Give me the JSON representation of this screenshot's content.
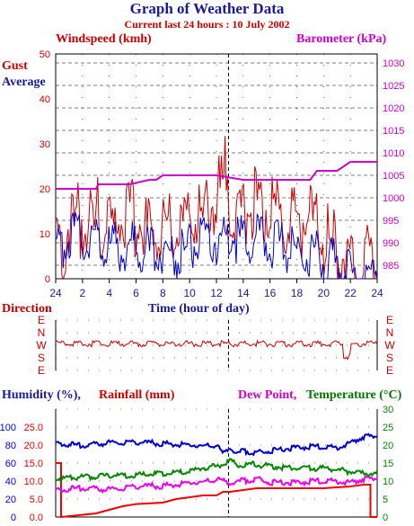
{
  "header": {
    "title": "Graph of Weather Data",
    "subtitle": "Current last 24 hours : 10 July 2002"
  },
  "colors": {
    "gust": "#cc0000",
    "average": "#0000cc",
    "barometer": "#cc00cc",
    "humidity": "#0000cc",
    "rainfall": "#ee0000",
    "dewpoint": "#ee00ee",
    "temperature": "#008800",
    "title": "#1a1a99",
    "axis_label_red": "#cc0000"
  },
  "chart_data": [
    {
      "type": "line",
      "panel": "wind",
      "labels": {
        "left_axis": "Windspeed (kmh)",
        "right_axis": "Barometer (kPa)",
        "gust": "Gust",
        "average": "Average",
        "xlabel": "Time (hour of day)"
      },
      "x": {
        "start_hour": 24,
        "ticks": [
          "24",
          "2",
          "4",
          "6",
          "8",
          "10",
          "12",
          "14",
          "16",
          "18",
          "20",
          "22",
          "24"
        ],
        "marker_hour": 12.9
      },
      "ylim": [
        0,
        50
      ],
      "yticks": [
        0,
        10,
        20,
        30,
        40,
        50
      ],
      "y2lim": [
        982,
        1032
      ],
      "y2ticks": [
        985,
        990,
        995,
        1000,
        1005,
        1010,
        1015,
        1020,
        1025,
        1030
      ],
      "grid": true,
      "series": [
        {
          "name": "Gust",
          "x": [
            0,
            1,
            2,
            3,
            3.1,
            3.3,
            4,
            5,
            6,
            7,
            8,
            9,
            10,
            11,
            12,
            12.5,
            12.7,
            13,
            14,
            15,
            16,
            17,
            18,
            19,
            20,
            21,
            22,
            22.5,
            23,
            24
          ],
          "y": [
            10,
            16,
            18,
            15,
            27,
            15,
            16,
            17,
            18,
            14,
            17,
            16,
            18,
            18,
            22,
            25,
            33,
            20,
            19,
            22,
            19,
            16,
            17,
            18,
            13,
            11,
            9,
            4,
            7,
            10
          ]
        },
        {
          "name": "Average",
          "x": [
            0,
            1,
            2,
            3,
            4,
            5,
            6,
            7,
            8,
            9,
            10,
            11,
            12,
            13,
            14,
            15,
            16,
            17,
            18,
            19,
            20,
            21,
            22,
            22.5,
            23,
            24
          ],
          "y": [
            8,
            13,
            12,
            12,
            10,
            10,
            11,
            9,
            10,
            8,
            10,
            11,
            11,
            13,
            11,
            12,
            11,
            10,
            9,
            9,
            7,
            6,
            5,
            0,
            2,
            7
          ]
        },
        {
          "name": "Barometer",
          "x": [
            0,
            3,
            3.2,
            5.5,
            7,
            7.5,
            8,
            9,
            10,
            11,
            12,
            14,
            17,
            19,
            19.5,
            21,
            22,
            24
          ],
          "y": [
            1002,
            1002,
            1003,
            1003,
            1004,
            1004,
            1005,
            1005,
            1005,
            1005,
            1005,
            1004,
            1004,
            1004,
            1006,
            1006,
            1008,
            1008
          ]
        }
      ]
    },
    {
      "type": "line",
      "panel": "direction",
      "labels": {
        "title": "Direction"
      },
      "yticks": [
        "E",
        "N",
        "W",
        "S",
        "E"
      ],
      "series": [
        {
          "name": "Direction",
          "x": [
            0,
            2,
            4,
            6,
            8,
            10,
            12,
            14,
            16,
            18,
            20,
            21,
            21.5,
            22,
            24
          ],
          "y": [
            "W",
            "W",
            "W",
            "W",
            "W",
            "W",
            "W",
            "W",
            "W",
            "W",
            "W",
            "W",
            "S",
            "W",
            "W"
          ]
        }
      ]
    },
    {
      "type": "line",
      "panel": "humidity",
      "labels": {
        "humidity": "Humidity (%),",
        "rainfall": "Rainfall (mm)",
        "dewpoint": "Dew Point,",
        "temperature": "Temperature (°C)"
      },
      "humidity_ticks": [
        0,
        20,
        40,
        60,
        80,
        100
      ],
      "rain_ticks": [
        "0.0",
        "5.0",
        "10.0",
        "15.0",
        "20.0",
        "25.0"
      ],
      "right_ticks": [
        0,
        5,
        10,
        15,
        20,
        25,
        30
      ],
      "ylim": [
        0,
        30
      ],
      "grid": true,
      "series": [
        {
          "name": "Humidity",
          "unit": "%",
          "x": [
            0,
            2,
            4,
            6,
            8,
            10,
            11,
            12,
            12.5,
            13,
            13.5,
            14,
            15,
            16,
            18,
            20,
            21,
            22,
            23,
            24
          ],
          "y": [
            84,
            81,
            84,
            85,
            83,
            82,
            80,
            82,
            72,
            80,
            72,
            75,
            73,
            75,
            79,
            80,
            78,
            84,
            91,
            91
          ]
        },
        {
          "name": "Rainfall",
          "unit": "mm",
          "x": [
            0,
            0.4,
            0.4,
            3,
            4,
            5,
            6,
            8,
            9,
            10,
            11,
            12,
            12.5,
            13,
            15,
            16,
            18,
            20,
            22,
            23,
            23.5,
            23.5,
            24
          ],
          "y": [
            15,
            15,
            0,
            1,
            2,
            3,
            3.6,
            4,
            5,
            5.5,
            6,
            6,
            7,
            7,
            8,
            8,
            8,
            8,
            8.5,
            9,
            9,
            0,
            0
          ]
        },
        {
          "name": "Dew Point",
          "unit": "°C",
          "x": [
            0,
            2,
            4,
            6,
            8,
            10,
            11,
            12,
            13,
            14,
            15,
            16,
            18,
            20,
            22,
            23,
            24
          ],
          "y": [
            8,
            8.5,
            8,
            9,
            9,
            10,
            10,
            11,
            10,
            10.5,
            11,
            10,
            10,
            10.5,
            10,
            11,
            11
          ]
        },
        {
          "name": "Temperature",
          "unit": "°C",
          "x": [
            0,
            2,
            4,
            6,
            8,
            10,
            11,
            12,
            13,
            13.5,
            14,
            15,
            16,
            18,
            20,
            22,
            23,
            24
          ],
          "y": [
            11,
            11.5,
            12,
            12,
            12.5,
            13,
            14,
            14.5,
            16,
            15,
            15,
            15,
            14.5,
            14,
            14,
            13,
            12.5,
            12.5
          ]
        }
      ]
    }
  ]
}
